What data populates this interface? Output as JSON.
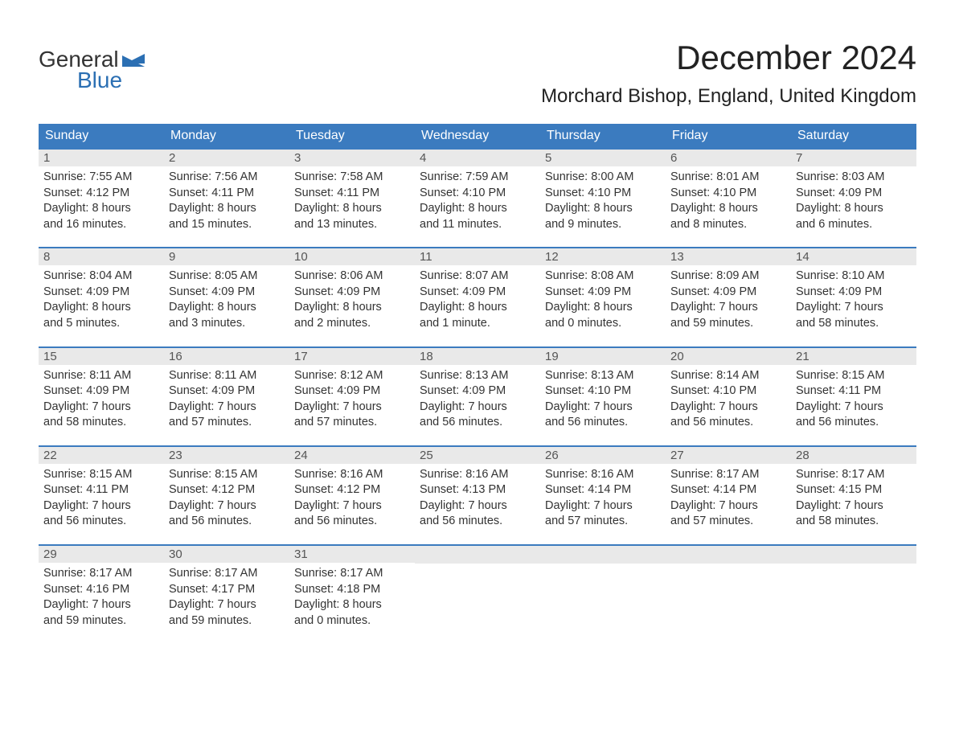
{
  "brand": {
    "word1": "General",
    "word2": "Blue",
    "flag_color": "#2b6fb3",
    "word1_color": "#333333",
    "word2_color": "#2b6fb3"
  },
  "header": {
    "month_title": "December 2024",
    "location": "Morchard Bishop, England, United Kingdom",
    "title_fontsize": 42,
    "location_fontsize": 24,
    "title_color": "#222222"
  },
  "calendar": {
    "type": "table",
    "header_bg": "#3b7bbf",
    "header_text_color": "#ffffff",
    "week_border_color": "#3b7bbf",
    "daynum_bg": "#e9e9e9",
    "daynum_color": "#555555",
    "body_text_color": "#333333",
    "body_fontsize": 14.5,
    "weekdays": [
      "Sunday",
      "Monday",
      "Tuesday",
      "Wednesday",
      "Thursday",
      "Friday",
      "Saturday"
    ],
    "weeks": [
      [
        {
          "n": "1",
          "sr": "Sunrise: 7:55 AM",
          "ss": "Sunset: 4:12 PM",
          "d1": "Daylight: 8 hours",
          "d2": "and 16 minutes."
        },
        {
          "n": "2",
          "sr": "Sunrise: 7:56 AM",
          "ss": "Sunset: 4:11 PM",
          "d1": "Daylight: 8 hours",
          "d2": "and 15 minutes."
        },
        {
          "n": "3",
          "sr": "Sunrise: 7:58 AM",
          "ss": "Sunset: 4:11 PM",
          "d1": "Daylight: 8 hours",
          "d2": "and 13 minutes."
        },
        {
          "n": "4",
          "sr": "Sunrise: 7:59 AM",
          "ss": "Sunset: 4:10 PM",
          "d1": "Daylight: 8 hours",
          "d2": "and 11 minutes."
        },
        {
          "n": "5",
          "sr": "Sunrise: 8:00 AM",
          "ss": "Sunset: 4:10 PM",
          "d1": "Daylight: 8 hours",
          "d2": "and 9 minutes."
        },
        {
          "n": "6",
          "sr": "Sunrise: 8:01 AM",
          "ss": "Sunset: 4:10 PM",
          "d1": "Daylight: 8 hours",
          "d2": "and 8 minutes."
        },
        {
          "n": "7",
          "sr": "Sunrise: 8:03 AM",
          "ss": "Sunset: 4:09 PM",
          "d1": "Daylight: 8 hours",
          "d2": "and 6 minutes."
        }
      ],
      [
        {
          "n": "8",
          "sr": "Sunrise: 8:04 AM",
          "ss": "Sunset: 4:09 PM",
          "d1": "Daylight: 8 hours",
          "d2": "and 5 minutes."
        },
        {
          "n": "9",
          "sr": "Sunrise: 8:05 AM",
          "ss": "Sunset: 4:09 PM",
          "d1": "Daylight: 8 hours",
          "d2": "and 3 minutes."
        },
        {
          "n": "10",
          "sr": "Sunrise: 8:06 AM",
          "ss": "Sunset: 4:09 PM",
          "d1": "Daylight: 8 hours",
          "d2": "and 2 minutes."
        },
        {
          "n": "11",
          "sr": "Sunrise: 8:07 AM",
          "ss": "Sunset: 4:09 PM",
          "d1": "Daylight: 8 hours",
          "d2": "and 1 minute."
        },
        {
          "n": "12",
          "sr": "Sunrise: 8:08 AM",
          "ss": "Sunset: 4:09 PM",
          "d1": "Daylight: 8 hours",
          "d2": "and 0 minutes."
        },
        {
          "n": "13",
          "sr": "Sunrise: 8:09 AM",
          "ss": "Sunset: 4:09 PM",
          "d1": "Daylight: 7 hours",
          "d2": "and 59 minutes."
        },
        {
          "n": "14",
          "sr": "Sunrise: 8:10 AM",
          "ss": "Sunset: 4:09 PM",
          "d1": "Daylight: 7 hours",
          "d2": "and 58 minutes."
        }
      ],
      [
        {
          "n": "15",
          "sr": "Sunrise: 8:11 AM",
          "ss": "Sunset: 4:09 PM",
          "d1": "Daylight: 7 hours",
          "d2": "and 58 minutes."
        },
        {
          "n": "16",
          "sr": "Sunrise: 8:11 AM",
          "ss": "Sunset: 4:09 PM",
          "d1": "Daylight: 7 hours",
          "d2": "and 57 minutes."
        },
        {
          "n": "17",
          "sr": "Sunrise: 8:12 AM",
          "ss": "Sunset: 4:09 PM",
          "d1": "Daylight: 7 hours",
          "d2": "and 57 minutes."
        },
        {
          "n": "18",
          "sr": "Sunrise: 8:13 AM",
          "ss": "Sunset: 4:09 PM",
          "d1": "Daylight: 7 hours",
          "d2": "and 56 minutes."
        },
        {
          "n": "19",
          "sr": "Sunrise: 8:13 AM",
          "ss": "Sunset: 4:10 PM",
          "d1": "Daylight: 7 hours",
          "d2": "and 56 minutes."
        },
        {
          "n": "20",
          "sr": "Sunrise: 8:14 AM",
          "ss": "Sunset: 4:10 PM",
          "d1": "Daylight: 7 hours",
          "d2": "and 56 minutes."
        },
        {
          "n": "21",
          "sr": "Sunrise: 8:15 AM",
          "ss": "Sunset: 4:11 PM",
          "d1": "Daylight: 7 hours",
          "d2": "and 56 minutes."
        }
      ],
      [
        {
          "n": "22",
          "sr": "Sunrise: 8:15 AM",
          "ss": "Sunset: 4:11 PM",
          "d1": "Daylight: 7 hours",
          "d2": "and 56 minutes."
        },
        {
          "n": "23",
          "sr": "Sunrise: 8:15 AM",
          "ss": "Sunset: 4:12 PM",
          "d1": "Daylight: 7 hours",
          "d2": "and 56 minutes."
        },
        {
          "n": "24",
          "sr": "Sunrise: 8:16 AM",
          "ss": "Sunset: 4:12 PM",
          "d1": "Daylight: 7 hours",
          "d2": "and 56 minutes."
        },
        {
          "n": "25",
          "sr": "Sunrise: 8:16 AM",
          "ss": "Sunset: 4:13 PM",
          "d1": "Daylight: 7 hours",
          "d2": "and 56 minutes."
        },
        {
          "n": "26",
          "sr": "Sunrise: 8:16 AM",
          "ss": "Sunset: 4:14 PM",
          "d1": "Daylight: 7 hours",
          "d2": "and 57 minutes."
        },
        {
          "n": "27",
          "sr": "Sunrise: 8:17 AM",
          "ss": "Sunset: 4:14 PM",
          "d1": "Daylight: 7 hours",
          "d2": "and 57 minutes."
        },
        {
          "n": "28",
          "sr": "Sunrise: 8:17 AM",
          "ss": "Sunset: 4:15 PM",
          "d1": "Daylight: 7 hours",
          "d2": "and 58 minutes."
        }
      ],
      [
        {
          "n": "29",
          "sr": "Sunrise: 8:17 AM",
          "ss": "Sunset: 4:16 PM",
          "d1": "Daylight: 7 hours",
          "d2": "and 59 minutes."
        },
        {
          "n": "30",
          "sr": "Sunrise: 8:17 AM",
          "ss": "Sunset: 4:17 PM",
          "d1": "Daylight: 7 hours",
          "d2": "and 59 minutes."
        },
        {
          "n": "31",
          "sr": "Sunrise: 8:17 AM",
          "ss": "Sunset: 4:18 PM",
          "d1": "Daylight: 8 hours",
          "d2": "and 0 minutes."
        },
        null,
        null,
        null,
        null
      ]
    ]
  }
}
